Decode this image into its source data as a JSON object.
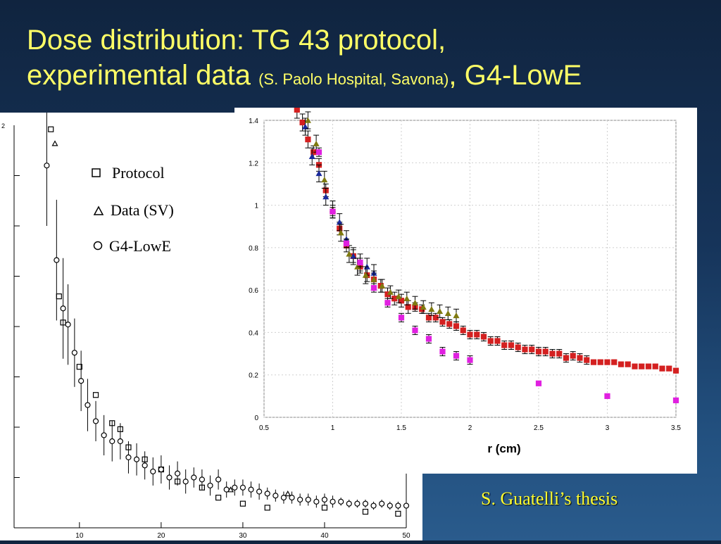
{
  "slide": {
    "title_line1": "Dose distribution: TG 43 protocol,",
    "title_line2_main": "experimental data ",
    "title_line2_small": "(S. Paolo Hospital, Savona)",
    "title_line2_end": ", G4-LowE",
    "credit": "S. Guatelli’s thesis"
  },
  "colors": {
    "title": "#ffff66",
    "credit": "#ffff33",
    "background_top": "#10243f",
    "background_bottom": "#2a5b8c"
  },
  "chart_data": [
    {
      "type": "scatter",
      "title": "",
      "xlabel": "",
      "ylabel": "",
      "xlim": [
        2,
        50
      ],
      "ylim": [
        0,
        2
      ],
      "x_ticks": [
        "10",
        "20",
        "30",
        "40",
        "50"
      ],
      "y_ticks": [
        "2"
      ],
      "legend": {
        "position": "top-center",
        "entries": [
          {
            "symbol": "square",
            "label": "Protocol"
          },
          {
            "symbol": "triangle",
            "label": "Data (SV)"
          },
          {
            "symbol": "circle",
            "label": "G4-LowE"
          }
        ]
      },
      "series": [
        {
          "name": "Protocol",
          "marker": "square",
          "x": [
            6.5,
            7.5,
            8,
            10,
            12,
            14,
            15,
            16,
            18,
            20,
            22,
            25,
            27,
            30,
            33,
            40,
            45,
            49
          ],
          "y": [
            1.98,
            1.15,
            1.02,
            0.8,
            0.66,
            0.52,
            0.49,
            0.4,
            0.34,
            0.29,
            0.23,
            0.2,
            0.15,
            0.12,
            0.1,
            0.1,
            0.08,
            0.07
          ],
          "err": [
            0,
            0,
            0,
            0,
            0,
            0,
            0,
            0,
            0,
            0,
            0,
            0,
            0,
            0,
            0,
            0,
            0,
            0
          ]
        },
        {
          "name": "Data (SV)",
          "marker": "triangle",
          "x": [
            7,
            28.5,
            35.5
          ],
          "y": [
            1.91,
            0.19,
            0.17
          ],
          "err": [
            0,
            0,
            0
          ]
        },
        {
          "name": "G4-LowE",
          "marker": "circle",
          "x": [
            6,
            7.2,
            8,
            8.6,
            9.4,
            10.2,
            11,
            12,
            13,
            14,
            15,
            16,
            17,
            18,
            19,
            20,
            21,
            22,
            23,
            24,
            25,
            26,
            27,
            28,
            29,
            30,
            31,
            32,
            33,
            34,
            35,
            36,
            37,
            38,
            39,
            40,
            41,
            42,
            43,
            44,
            45,
            46,
            47,
            48,
            49,
            50
          ],
          "y": [
            1.8,
            1.33,
            1.09,
            1.01,
            0.87,
            0.73,
            0.61,
            0.53,
            0.46,
            0.43,
            0.43,
            0.35,
            0.34,
            0.31,
            0.28,
            0.29,
            0.25,
            0.27,
            0.23,
            0.25,
            0.24,
            0.21,
            0.24,
            0.19,
            0.2,
            0.2,
            0.19,
            0.18,
            0.17,
            0.16,
            0.15,
            0.15,
            0.14,
            0.14,
            0.13,
            0.14,
            0.13,
            0.13,
            0.12,
            0.12,
            0.12,
            0.11,
            0.12,
            0.11,
            0.11,
            0.11
          ],
          "err": [
            0.3,
            0.3,
            0.25,
            0.2,
            0.17,
            0.15,
            0.13,
            0.1,
            0.1,
            0.1,
            0.09,
            0.08,
            0.08,
            0.07,
            0.07,
            0.07,
            0.06,
            0.06,
            0.06,
            0.05,
            0.05,
            0.05,
            0.05,
            0.04,
            0.04,
            0.04,
            0.04,
            0.04,
            0.03,
            0.03,
            0.03,
            0.03,
            0.03,
            0.03,
            0.03,
            0.03,
            0.03,
            0.02,
            0.02,
            0.02,
            0.02,
            0.02,
            0.02,
            0.02,
            0.02,
            0.02
          ]
        }
      ]
    },
    {
      "type": "scatter",
      "title": "",
      "xlabel": "r (cm)",
      "ylabel": "",
      "xlim": [
        0.5,
        3.5
      ],
      "ylim": [
        0,
        1.4
      ],
      "x_ticks": [
        "0.5",
        "1",
        "1.5",
        "2",
        "2.5",
        "3",
        "3.5"
      ],
      "y_ticks": [
        "0",
        "0.2",
        "0.4",
        "0.6",
        "0.8",
        "1",
        "1.2",
        "1.4"
      ],
      "grid": true,
      "series": [
        {
          "color": "#d42020",
          "marker": "square",
          "x": [
            0.74,
            0.78,
            0.82,
            0.86,
            0.9,
            0.95,
            1.0,
            1.05,
            1.1,
            1.15,
            1.2,
            1.25,
            1.3,
            1.35,
            1.4,
            1.45,
            1.5,
            1.55,
            1.6,
            1.65,
            1.7,
            1.75,
            1.8,
            1.85,
            1.9,
            1.95,
            2.0,
            2.05,
            2.1,
            2.15,
            2.2,
            2.25,
            2.3,
            2.35,
            2.4,
            2.45,
            2.5,
            2.55,
            2.6,
            2.65,
            2.7,
            2.75,
            2.8,
            2.85,
            2.9,
            2.95,
            3.0,
            3.05,
            3.1,
            3.15,
            3.2,
            3.25,
            3.3,
            3.35,
            3.4,
            3.45,
            3.5
          ],
          "y": [
            1.45,
            1.39,
            1.31,
            1.25,
            1.19,
            1.07,
            0.97,
            0.89,
            0.81,
            0.76,
            0.71,
            0.67,
            0.65,
            0.62,
            0.58,
            0.56,
            0.55,
            0.52,
            0.52,
            0.51,
            0.47,
            0.47,
            0.45,
            0.44,
            0.43,
            0.41,
            0.39,
            0.39,
            0.38,
            0.36,
            0.36,
            0.34,
            0.34,
            0.33,
            0.32,
            0.32,
            0.31,
            0.31,
            0.3,
            0.3,
            0.28,
            0.29,
            0.28,
            0.27,
            0.26,
            0.26,
            0.26,
            0.26,
            0.25,
            0.25,
            0.24,
            0.24,
            0.24,
            0.24,
            0.23,
            0.23,
            0.22
          ],
          "err": [
            0.04,
            0.04,
            0.04,
            0.03,
            0.03,
            0.03,
            0.03,
            0.03,
            0.03,
            0.03,
            0.03,
            0.03,
            0.03,
            0.03,
            0.03,
            0.03,
            0.03,
            0.03,
            0.02,
            0.02,
            0.02,
            0.02,
            0.02,
            0.02,
            0.02,
            0.02,
            0.02,
            0.02,
            0.02,
            0.02,
            0.02,
            0.02,
            0.02,
            0.02,
            0.02,
            0.02,
            0.02,
            0.02,
            0.02,
            0.02,
            0.02,
            0.02,
            0.02,
            0.02,
            0.01,
            0.01,
            0.01,
            0.01,
            0.01,
            0.01,
            0.01,
            0.01,
            0.01,
            0.01,
            0.01,
            0.01,
            0.01
          ]
        },
        {
          "color": "#1b2a9c",
          "marker": "triangle",
          "x": [
            0.8,
            0.85,
            0.9,
            0.95,
            1.0,
            1.05,
            1.1,
            1.15,
            1.2,
            1.25,
            1.3
          ],
          "y": [
            1.37,
            1.23,
            1.15,
            1.04,
            0.98,
            0.92,
            0.84,
            0.76,
            0.73,
            0.71,
            0.68
          ],
          "err": [
            0.04,
            0.04,
            0.04,
            0.04,
            0.04,
            0.04,
            0.04,
            0.04,
            0.04,
            0.04,
            0.04
          ]
        },
        {
          "color": "#7f7a10",
          "marker": "triangle",
          "x": [
            0.82,
            0.88,
            0.94,
            1.0,
            1.06,
            1.12,
            1.18,
            1.24,
            1.3,
            1.36,
            1.42,
            1.48,
            1.54,
            1.6,
            1.66,
            1.72,
            1.78,
            1.84,
            1.9
          ],
          "y": [
            1.4,
            1.29,
            1.12,
            0.98,
            0.87,
            0.77,
            0.71,
            0.67,
            0.65,
            0.62,
            0.59,
            0.57,
            0.56,
            0.54,
            0.52,
            0.51,
            0.5,
            0.49,
            0.48
          ],
          "err": [
            0.04,
            0.04,
            0.04,
            0.04,
            0.04,
            0.04,
            0.04,
            0.04,
            0.04,
            0.03,
            0.03,
            0.03,
            0.03,
            0.03,
            0.03,
            0.03,
            0.03,
            0.03,
            0.03
          ]
        },
        {
          "color": "#e020e0",
          "marker": "square",
          "x": [
            0.9,
            1.0,
            1.1,
            1.2,
            1.3,
            1.4,
            1.5,
            1.6,
            1.7,
            1.8,
            1.9,
            2.0,
            2.5,
            3.0,
            3.5
          ],
          "y": [
            1.25,
            0.97,
            0.82,
            0.73,
            0.61,
            0.54,
            0.47,
            0.41,
            0.37,
            0.31,
            0.29,
            0.27,
            0.16,
            0.1,
            0.08
          ],
          "err": [
            0.02,
            0.02,
            0.02,
            0.02,
            0.02,
            0.02,
            0.02,
            0.02,
            0.02,
            0.02,
            0.02,
            0.02,
            0.01,
            0.01,
            0.01
          ]
        }
      ]
    }
  ]
}
